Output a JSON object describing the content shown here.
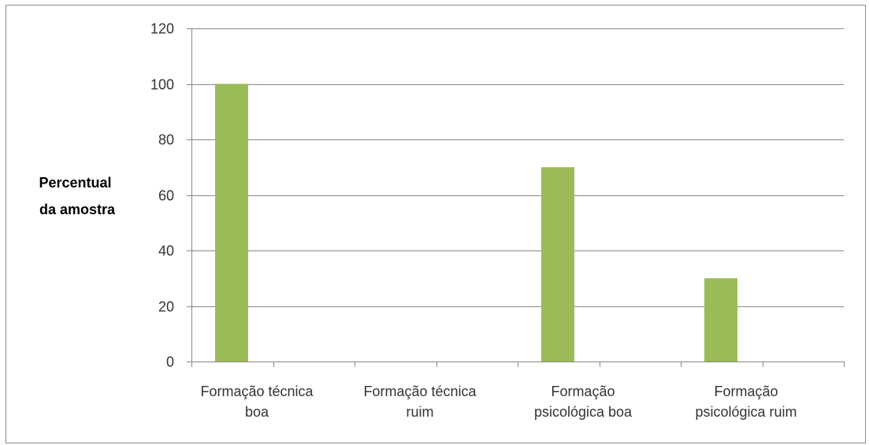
{
  "chart_data": {
    "type": "bar",
    "categories": [
      [
        "Formação técnica",
        "boa"
      ],
      [
        "Formação técnica",
        "ruim"
      ],
      [
        "Formação",
        "psicológica boa"
      ],
      [
        "Formação",
        "psicológica ruim"
      ]
    ],
    "values": [
      100,
      0,
      70,
      30
    ],
    "title": "",
    "xlabel": "",
    "ylabel": [
      "Percentual",
      "da amostra"
    ],
    "ylim": [
      0,
      120
    ],
    "yticks": [
      0,
      20,
      40,
      60,
      80,
      100,
      120
    ],
    "grid": true,
    "legend": "none",
    "bar_color": "#9BBB59",
    "grid_color": "#878787"
  }
}
